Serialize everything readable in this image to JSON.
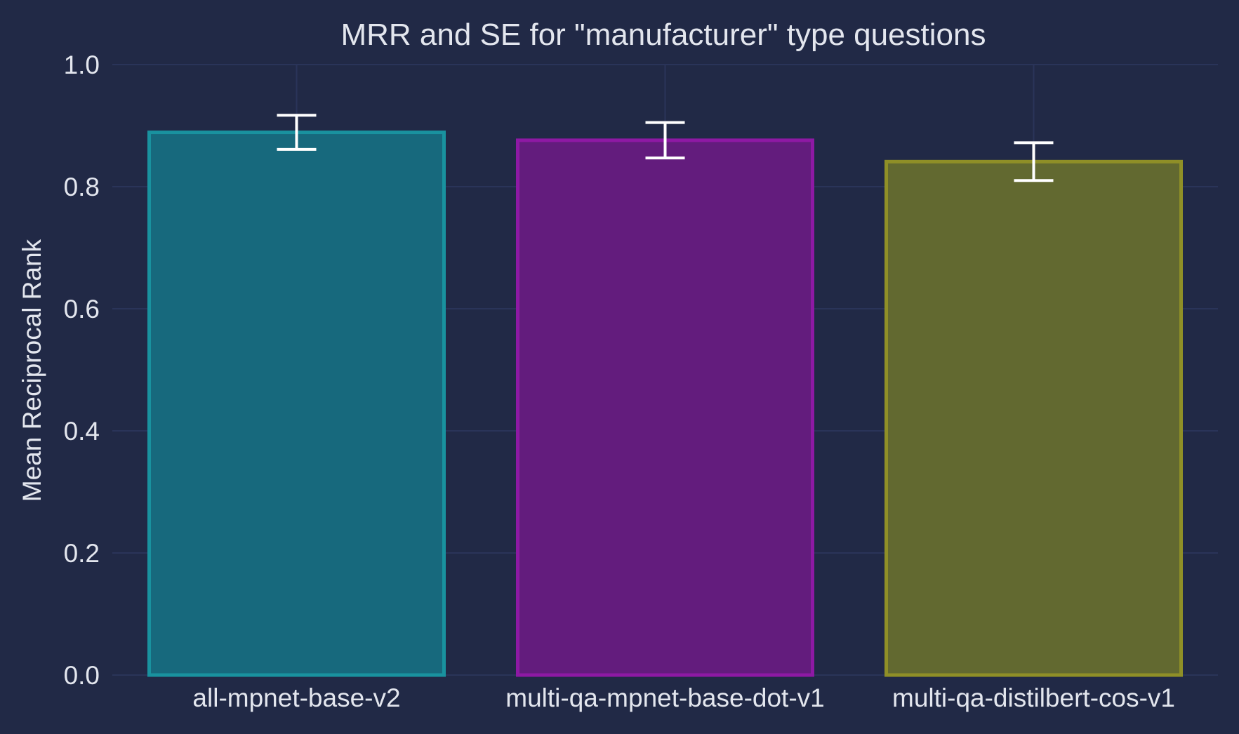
{
  "chart_data": {
    "type": "bar",
    "title": "MRR and SE for \"manufacturer\" type questions",
    "xlabel": "",
    "ylabel": "Mean Reciprocal Rank",
    "categories": [
      "all-mpnet-base-v2",
      "multi-qa-mpnet-base-dot-v1",
      "multi-qa-distilbert-cos-v1"
    ],
    "values": [
      0.889,
      0.876,
      0.841
    ],
    "errors": [
      0.028,
      0.029,
      0.031
    ],
    "ylim": [
      0.0,
      1.0
    ],
    "yticks": [
      "0.0",
      "0.2",
      "0.4",
      "0.6",
      "0.8",
      "1.0"
    ],
    "grid": true,
    "colors": {
      "background": "#212946",
      "grid": "#2a3459",
      "text": "#e3e6ee",
      "errorbar": "#ffffff",
      "bar_fills": [
        "#17697d",
        "#631c7d",
        "#626930"
      ],
      "bar_edges": [
        "#19929f",
        "#8e19a4",
        "#8f8f27"
      ]
    }
  }
}
